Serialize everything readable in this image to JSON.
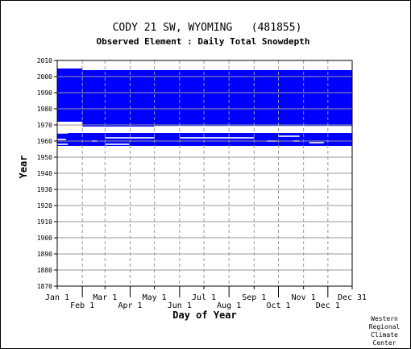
{
  "chart_data": {
    "type": "heatmap",
    "title": "CODY 21 SW, WYOMING   (481855)",
    "subtitle": "Observed Element : Daily Total Snowdepth",
    "xlabel": "Day of Year",
    "ylabel": "Year",
    "xlim": [
      1,
      365
    ],
    "ylim": [
      1870,
      2010
    ],
    "grid": true,
    "fill_color": "#0000ff",
    "x_ticks_upper": [
      {
        "label": "Jan 1",
        "day": 1
      },
      {
        "label": "Mar 1",
        "day": 60
      },
      {
        "label": "May 1",
        "day": 121
      },
      {
        "label": "Jul 1",
        "day": 182
      },
      {
        "label": "Sep 1",
        "day": 244
      },
      {
        "label": "Nov 1",
        "day": 305
      },
      {
        "label": "Dec 31",
        "day": 365
      }
    ],
    "x_ticks_lower": [
      {
        "label": "Feb 1",
        "day": 32
      },
      {
        "label": "Apr 1",
        "day": 91
      },
      {
        "label": "Jun 1",
        "day": 152
      },
      {
        "label": "Aug 1",
        "day": 213
      },
      {
        "label": "Oct 1",
        "day": 274
      },
      {
        "label": "Dec 1",
        "day": 335
      }
    ],
    "y_ticks": [
      1870,
      1880,
      1890,
      1900,
      1910,
      1920,
      1930,
      1940,
      1950,
      1960,
      1970,
      1980,
      1990,
      2000,
      2010
    ],
    "data_coverage": [
      {
        "day_start": 1,
        "day_end": 32,
        "year_start": 1972,
        "year_end": 2005
      },
      {
        "day_start": 32,
        "day_end": 365,
        "year_start": 1969,
        "year_end": 2004
      },
      {
        "day_start": 1,
        "day_end": 365,
        "year_start": 1957,
        "year_end": 1965
      }
    ],
    "missing_segments": [
      {
        "day_start": 1,
        "day_end": 32,
        "year": 1971
      },
      {
        "day_start": 121,
        "day_end": 365,
        "year": 1969
      },
      {
        "day_start": 1,
        "day_end": 14,
        "year": 1965
      },
      {
        "day_start": 1,
        "day_end": 12,
        "year": 1961
      },
      {
        "day_start": 60,
        "day_end": 121,
        "year": 1962
      },
      {
        "day_start": 152,
        "day_end": 244,
        "year": 1962
      },
      {
        "day_start": 60,
        "day_end": 90,
        "year": 1958
      },
      {
        "day_start": 1,
        "day_end": 14,
        "year": 1958
      },
      {
        "day_start": 274,
        "day_end": 300,
        "year": 1963
      },
      {
        "day_start": 312,
        "day_end": 330,
        "year": 1959
      },
      {
        "day_start": 260,
        "day_end": 272,
        "year": 1960
      },
      {
        "day_start": 292,
        "day_end": 300,
        "year": 1960
      },
      {
        "day_start": 44,
        "day_end": 50,
        "year": 1960
      }
    ]
  },
  "credit": {
    "line1": "Western",
    "line2": "Regional",
    "line3": "Climate",
    "line4": "Center"
  }
}
